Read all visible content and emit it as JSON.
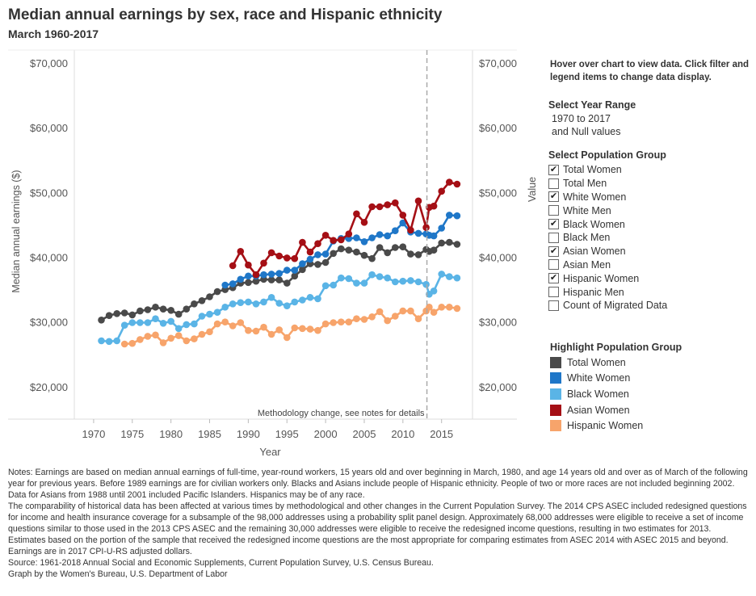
{
  "title": "Median annual earnings by sex, race and Hispanic ethnicity",
  "subtitle": "March 1960-2017",
  "hover_note": "Hover over chart to view data. Click filter and legend items to change data display.",
  "year_filter": {
    "title": "Select Year Range",
    "line1": "1970 to 2017",
    "line2": "and Null values"
  },
  "population_filter": {
    "title": "Select Population Group",
    "items": [
      {
        "label": "Total Women",
        "checked": true,
        "mark": "✔"
      },
      {
        "label": "Total Men",
        "checked": false,
        "mark": ""
      },
      {
        "label": "White Women",
        "checked": true,
        "mark": "✔"
      },
      {
        "label": "White Men",
        "checked": false,
        "mark": ""
      },
      {
        "label": "Black Women",
        "checked": true,
        "mark": "✔"
      },
      {
        "label": "Black Men",
        "checked": false,
        "mark": ""
      },
      {
        "label": "Asian Women",
        "checked": true,
        "mark": "✔"
      },
      {
        "label": "Asian Men",
        "checked": false,
        "mark": ""
      },
      {
        "label": "Hispanic Women",
        "checked": true,
        "mark": "✔"
      },
      {
        "label": "Hispanic Men",
        "checked": false,
        "mark": ""
      },
      {
        "label": "Count of Migrated Data",
        "checked": false,
        "mark": ""
      }
    ]
  },
  "highlight": {
    "title": "Highlight Population Group",
    "items": [
      {
        "label": "Total Women",
        "color": "#4a4a4a"
      },
      {
        "label": "White Women",
        "color": "#1f77c8"
      },
      {
        "label": "Black Women",
        "color": "#5ab4e6"
      },
      {
        "label": "Asian Women",
        "color": "#a50f15"
      },
      {
        "label": "Hispanic Women",
        "color": "#f7a46b"
      }
    ]
  },
  "notes": [
    "Notes: Earnings are based on median annual earnings of full-time, year-round workers, 15 years old and over beginning in March, 1980, and age 14 years old and over as of March of the following year for previous years. Before 1989 earnings are for civilian workers only. Blacks and Asians include people of Hispanic ethnicity. People of two or more races are not included beginning 2002. Data for Asians from 1988 until 2001 included Pacific Islanders. Hispanics may be of any race.",
    "The comparability of historical data has been affected at various times by methodological and other changes in the Current Population Survey. The 2014 CPS ASEC included redesigned questions for income and health insurance coverage for a subsample of the 98,000 addresses using a probability split panel design. Approximately 68,000 addresses were eligible to receive a set of income questions similar to those used in the 2013 CPS ASEC and the remaining 30,000 addresses were eligible to receive the redesigned income questions, resulting in two estimates for 2013. Estimates based on the portion of the sample that received the redesigned income questions are the most appropriate for comparing estimates from ASEC 2014 with ASEC 2015 and beyond.",
    "Earnings are in 2017 CPI-U-RS adjusted dollars.",
    "Source: 1961-2018 Annual Social and Economic Supplements, Current Population Survey, U.S. Census Bureau.",
    "Graph by the Women's Bureau, U.S. Department of Labor"
  ],
  "chart_data": {
    "type": "line",
    "xlabel": "Year",
    "ylabel": "Median annual earnings ($)",
    "ylabel_right": "Value",
    "xlim": [
      1967.5,
      2019
    ],
    "ylim": [
      15000,
      72000
    ],
    "x_ticks": [
      1970,
      1975,
      1980,
      1985,
      1990,
      1995,
      2000,
      2005,
      2010,
      2015
    ],
    "y_ticks": [
      20000,
      30000,
      40000,
      50000,
      60000,
      70000
    ],
    "y_tick_labels": [
      "$20,000",
      "$30,000",
      "$40,000",
      "$50,000",
      "$60,000",
      "$70,000"
    ],
    "annotation": {
      "x": 2013,
      "text": "Methodology change, see notes for details"
    },
    "series": [
      {
        "name": "Total Women",
        "color": "#4a4a4a",
        "points": [
          [
            1971,
            30300
          ],
          [
            1972,
            31000
          ],
          [
            1973,
            31300
          ],
          [
            1974,
            31400
          ],
          [
            1975,
            31100
          ],
          [
            1976,
            31700
          ],
          [
            1977,
            31900
          ],
          [
            1978,
            32300
          ],
          [
            1979,
            32000
          ],
          [
            1980,
            31800
          ],
          [
            1981,
            31200
          ],
          [
            1982,
            32000
          ],
          [
            1983,
            32800
          ],
          [
            1984,
            33300
          ],
          [
            1985,
            33900
          ],
          [
            1986,
            34700
          ],
          [
            1987,
            35000
          ],
          [
            1988,
            35300
          ],
          [
            1989,
            36000
          ],
          [
            1990,
            36100
          ],
          [
            1991,
            36300
          ],
          [
            1992,
            36600
          ],
          [
            1993,
            36500
          ],
          [
            1994,
            36500
          ],
          [
            1995,
            36000
          ],
          [
            1996,
            37100
          ],
          [
            1997,
            38100
          ],
          [
            1998,
            39000
          ],
          [
            1999,
            38900
          ],
          [
            2000,
            39200
          ],
          [
            2001,
            40600
          ],
          [
            2002,
            41300
          ],
          [
            2003,
            41100
          ],
          [
            2004,
            40800
          ],
          [
            2005,
            40300
          ],
          [
            2006,
            39800
          ],
          [
            2007,
            41500
          ],
          [
            2008,
            40700
          ],
          [
            2009,
            41500
          ],
          [
            2010,
            41600
          ],
          [
            2011,
            40500
          ],
          [
            2012,
            40400
          ],
          [
            2013,
            41200
          ],
          [
            2013.4,
            40900
          ],
          [
            2014,
            41100
          ],
          [
            2015,
            42200
          ],
          [
            2016,
            42300
          ],
          [
            2017,
            42000
          ]
        ]
      },
      {
        "name": "White Women",
        "color": "#1f77c8",
        "points": [
          [
            1987,
            35700
          ],
          [
            1988,
            35900
          ],
          [
            1989,
            36600
          ],
          [
            1990,
            37100
          ],
          [
            1991,
            37100
          ],
          [
            1992,
            37300
          ],
          [
            1993,
            37400
          ],
          [
            1994,
            37500
          ],
          [
            1995,
            38000
          ],
          [
            1996,
            38000
          ],
          [
            1997,
            39000
          ],
          [
            1998,
            39700
          ],
          [
            1999,
            40400
          ],
          [
            2000,
            40500
          ],
          [
            2001,
            42500
          ],
          [
            2002,
            42900
          ],
          [
            2003,
            42900
          ],
          [
            2004,
            43000
          ],
          [
            2005,
            42400
          ],
          [
            2006,
            43000
          ],
          [
            2007,
            43500
          ],
          [
            2008,
            43300
          ],
          [
            2009,
            44100
          ],
          [
            2010,
            45300
          ],
          [
            2011,
            43900
          ],
          [
            2012,
            43700
          ],
          [
            2013,
            43600
          ],
          [
            2013.4,
            43400
          ],
          [
            2014,
            43300
          ],
          [
            2015,
            44500
          ],
          [
            2016,
            46500
          ],
          [
            2017,
            46400
          ]
        ]
      },
      {
        "name": "Black Women",
        "color": "#5ab4e6",
        "points": [
          [
            1971,
            27100
          ],
          [
            1972,
            27000
          ],
          [
            1973,
            27100
          ],
          [
            1974,
            29500
          ],
          [
            1975,
            29900
          ],
          [
            1976,
            29900
          ],
          [
            1977,
            29900
          ],
          [
            1978,
            30500
          ],
          [
            1979,
            29800
          ],
          [
            1980,
            30100
          ],
          [
            1981,
            29000
          ],
          [
            1982,
            29600
          ],
          [
            1983,
            29700
          ],
          [
            1984,
            30900
          ],
          [
            1985,
            31200
          ],
          [
            1986,
            31500
          ],
          [
            1987,
            32300
          ],
          [
            1988,
            32800
          ],
          [
            1989,
            33000
          ],
          [
            1990,
            33100
          ],
          [
            1991,
            32800
          ],
          [
            1992,
            33100
          ],
          [
            1993,
            33800
          ],
          [
            1994,
            32900
          ],
          [
            1995,
            32500
          ],
          [
            1996,
            33100
          ],
          [
            1997,
            33400
          ],
          [
            1998,
            33800
          ],
          [
            1999,
            33600
          ],
          [
            2000,
            35600
          ],
          [
            2001,
            35700
          ],
          [
            2002,
            36800
          ],
          [
            2003,
            36700
          ],
          [
            2004,
            36000
          ],
          [
            2005,
            36000
          ],
          [
            2006,
            37300
          ],
          [
            2007,
            37000
          ],
          [
            2008,
            36800
          ],
          [
            2009,
            36200
          ],
          [
            2010,
            36300
          ],
          [
            2011,
            36400
          ],
          [
            2012,
            36200
          ],
          [
            2013,
            35800
          ],
          [
            2013.4,
            34300
          ],
          [
            2014,
            34800
          ],
          [
            2015,
            37400
          ],
          [
            2016,
            37000
          ],
          [
            2017,
            36800
          ]
        ]
      },
      {
        "name": "Asian Women",
        "color": "#a50f15",
        "points": [
          [
            1988,
            38700
          ],
          [
            1989,
            40900
          ],
          [
            1990,
            38800
          ],
          [
            1991,
            37300
          ],
          [
            1992,
            39100
          ],
          [
            1993,
            40700
          ],
          [
            1994,
            40200
          ],
          [
            1995,
            39900
          ],
          [
            1996,
            39800
          ],
          [
            1997,
            42300
          ],
          [
            1998,
            40800
          ],
          [
            1999,
            42100
          ],
          [
            2000,
            43400
          ],
          [
            2001,
            42600
          ],
          [
            2002,
            42700
          ],
          [
            2003,
            43600
          ],
          [
            2004,
            46700
          ],
          [
            2005,
            45400
          ],
          [
            2006,
            47800
          ],
          [
            2007,
            47800
          ],
          [
            2008,
            48100
          ],
          [
            2009,
            48400
          ],
          [
            2010,
            46500
          ],
          [
            2011,
            44200
          ],
          [
            2012,
            48700
          ],
          [
            2013,
            44600
          ],
          [
            2013.4,
            47700
          ],
          [
            2014,
            47900
          ],
          [
            2015,
            50200
          ],
          [
            2016,
            51600
          ],
          [
            2017,
            51300
          ]
        ]
      },
      {
        "name": "Hispanic Women",
        "color": "#f7a46b",
        "points": [
          [
            1974,
            26600
          ],
          [
            1975,
            26700
          ],
          [
            1976,
            27300
          ],
          [
            1977,
            27800
          ],
          [
            1978,
            28000
          ],
          [
            1979,
            26800
          ],
          [
            1980,
            27500
          ],
          [
            1981,
            27900
          ],
          [
            1982,
            27100
          ],
          [
            1983,
            27400
          ],
          [
            1984,
            28100
          ],
          [
            1985,
            28500
          ],
          [
            1986,
            29700
          ],
          [
            1987,
            30000
          ],
          [
            1988,
            29400
          ],
          [
            1989,
            29900
          ],
          [
            1990,
            28700
          ],
          [
            1991,
            28600
          ],
          [
            1992,
            29200
          ],
          [
            1993,
            28100
          ],
          [
            1994,
            28800
          ],
          [
            1995,
            27600
          ],
          [
            1996,
            29100
          ],
          [
            1997,
            29000
          ],
          [
            1998,
            28900
          ],
          [
            1999,
            28700
          ],
          [
            2000,
            29700
          ],
          [
            2001,
            29900
          ],
          [
            2002,
            30000
          ],
          [
            2003,
            30000
          ],
          [
            2004,
            30500
          ],
          [
            2005,
            30400
          ],
          [
            2006,
            30800
          ],
          [
            2007,
            31600
          ],
          [
            2008,
            30200
          ],
          [
            2009,
            30900
          ],
          [
            2010,
            31700
          ],
          [
            2011,
            31700
          ],
          [
            2012,
            30500
          ],
          [
            2013,
            31700
          ],
          [
            2013.4,
            32300
          ],
          [
            2014,
            31500
          ],
          [
            2015,
            32300
          ],
          [
            2016,
            32300
          ],
          [
            2017,
            32100
          ]
        ]
      }
    ]
  }
}
